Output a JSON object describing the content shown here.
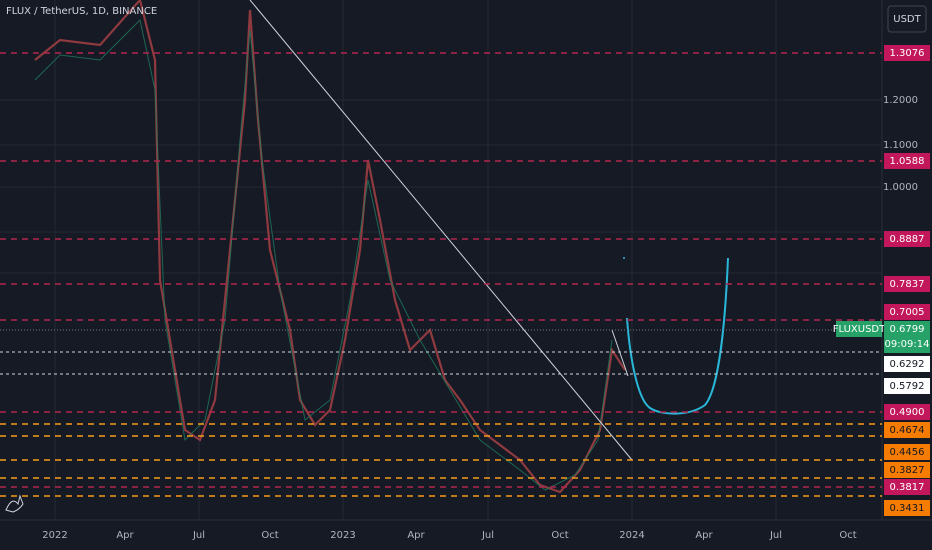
{
  "header": {
    "symbol": "FLUX / TetherUS, 1D, BINANCE",
    "currency": "USDT"
  },
  "price_axis": [
    "1.2000",
    "1.1000",
    "1.0000"
  ],
  "red_levels": [
    "1.3076",
    "1.0588",
    "0.8887",
    "0.7837",
    "0.7005",
    "0.4900",
    "0.3817"
  ],
  "orange_levels": [
    "0.4674",
    "0.4456",
    "0.3827",
    "0.3431"
  ],
  "white_levels": [
    "0.6292",
    "0.5792"
  ],
  "current": {
    "ticker": "FLUXUSDT",
    "price": "0.6799",
    "countdown": "09:09:14"
  },
  "time_axis": [
    "2022",
    "Apr",
    "Jul",
    "Oct",
    "2023",
    "Apr",
    "Jul",
    "Oct",
    "2024",
    "Apr",
    "Jul",
    "Oct"
  ]
}
